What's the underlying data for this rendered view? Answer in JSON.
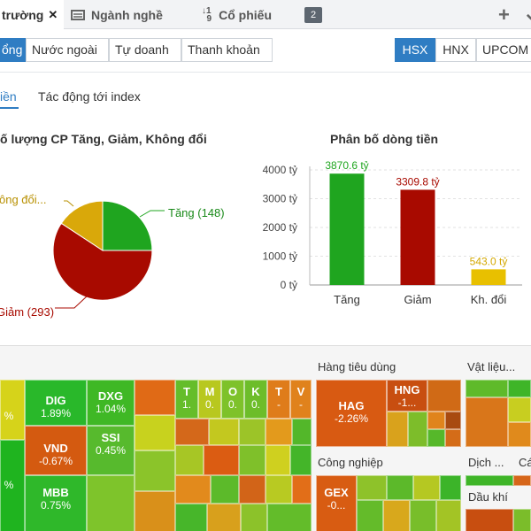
{
  "tabs": [
    {
      "label": "trường",
      "close": "✕"
    },
    {
      "label": "Ngành nghề",
      "icon": "list-icon"
    },
    {
      "label": "Cổ phiếu",
      "icon": "sort-icon"
    }
  ],
  "tab_badge": "2",
  "toolbar": {
    "add": "+",
    "more": "⌄"
  },
  "subtabs": [
    "ổng",
    "Nước ngoài",
    "Tự doanh",
    "Thanh khoản"
  ],
  "exchanges": [
    "HSX",
    "HNX",
    "UPCOM"
  ],
  "section_tabs": [
    "iền",
    "Tác động tới index"
  ],
  "pie": {
    "title": "ố lượng CP Tăng, Giảm, Không đổi",
    "labels": {
      "up": "Tăng (148)",
      "down": "Giảm (293)",
      "flat": "ông đổi..."
    },
    "colors": {
      "up": "#1fa51f",
      "down": "#a80a00",
      "flat": "#d9a80a"
    }
  },
  "bar": {
    "title": "Phân bố dòng tiền"
  },
  "chart_data": {
    "type": "bar",
    "title": "Phân bố dòng tiền",
    "categories": [
      "Tăng",
      "Giảm",
      "Kh. đổi"
    ],
    "values": [
      3870.6,
      3309.8,
      543.0
    ],
    "value_labels": [
      "3870.6 tỷ",
      "3309.8 tỷ",
      "543.0 tỷ"
    ],
    "colors": [
      "#1fa51f",
      "#a80a00",
      "#e8c000"
    ],
    "ylim": [
      0,
      4000
    ],
    "yticks": [
      "0 tỷ",
      "1000 tỷ",
      "2000 tỷ",
      "3000 tỷ",
      "4000 tỷ"
    ],
    "grid": true
  },
  "heatmap": {
    "sectors": [
      "Hàng tiêu dùng",
      "Vật liệu...",
      "Công nghiệp",
      "Dịch ...",
      "Cá",
      "Dầu khí"
    ],
    "tiles": [
      {
        "ticker": "DIG",
        "change": "1.89%"
      },
      {
        "ticker": "DXG",
        "change": "1.04%"
      },
      {
        "ticker": "VND",
        "change": "-0.67%"
      },
      {
        "ticker": "SSI",
        "change": "0.45%"
      },
      {
        "ticker": "MBB",
        "change": "0.75%"
      },
      {
        "ticker": "HAG",
        "change": "-2.26%"
      },
      {
        "ticker": "HNG",
        "change": "-1..."
      },
      {
        "ticker": "GEX",
        "change": "-0..."
      },
      {
        "ticker": "T",
        "change": "1."
      },
      {
        "ticker": "M",
        "change": "0."
      },
      {
        "ticker": "O",
        "change": "0."
      },
      {
        "ticker": "K",
        "change": "0."
      },
      {
        "ticker": "T",
        "change": "-"
      },
      {
        "ticker": "V",
        "change": "-"
      }
    ],
    "edge_labels": [
      "%",
      "%"
    ]
  }
}
